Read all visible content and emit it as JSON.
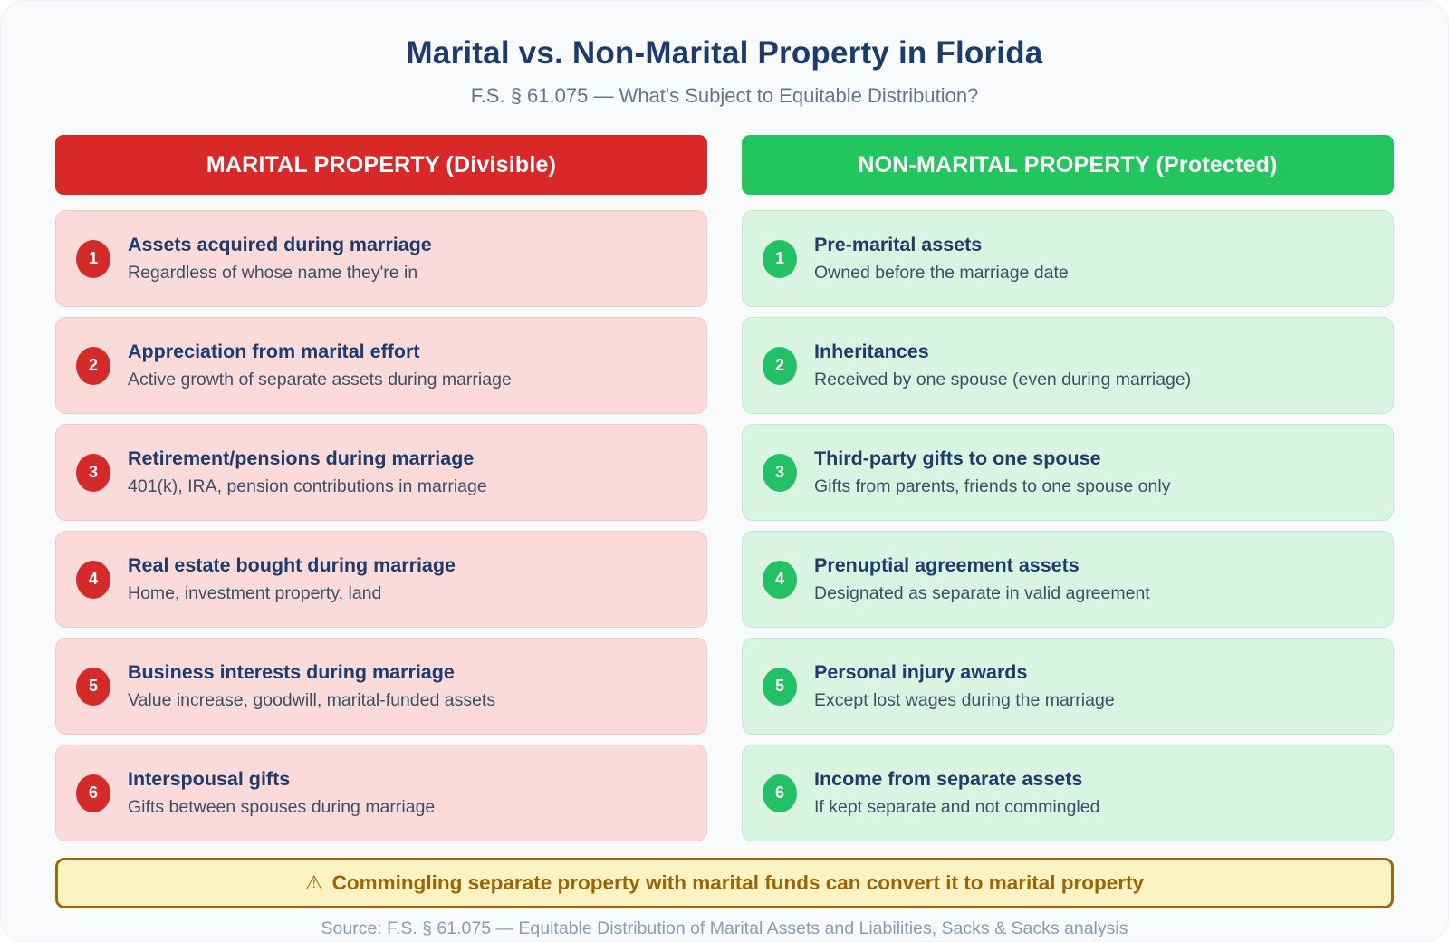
{
  "header": {
    "title": "Marital vs. Non-Marital Property in Florida",
    "subtitle": "F.S. § 61.075 — What's Subject to Equitable Distribution?"
  },
  "columns": [
    {
      "header": "MARITAL PROPERTY (Divisible)",
      "accent_color": "#d92828",
      "card_bg_color": "#fbdbd9",
      "items": [
        {
          "num": "1",
          "title": "Assets acquired during marriage",
          "desc": "Regardless of whose name they're in"
        },
        {
          "num": "2",
          "title": "Appreciation from marital effort",
          "desc": "Active growth of separate assets during marriage"
        },
        {
          "num": "3",
          "title": "Retirement/pensions during marriage",
          "desc": "401(k), IRA, pension contributions in marriage"
        },
        {
          "num": "4",
          "title": "Real estate bought during marriage",
          "desc": "Home, investment property, land"
        },
        {
          "num": "5",
          "title": "Business interests during marriage",
          "desc": "Value increase, goodwill, marital-funded assets"
        },
        {
          "num": "6",
          "title": "Interspousal gifts",
          "desc": "Gifts between spouses during marriage"
        }
      ]
    },
    {
      "header": "NON-MARITAL PROPERTY (Protected)",
      "accent_color": "#22c55e",
      "card_bg_color": "#d9f4e1",
      "items": [
        {
          "num": "1",
          "title": "Pre-marital assets",
          "desc": "Owned before the marriage date"
        },
        {
          "num": "2",
          "title": "Inheritances",
          "desc": "Received by one spouse (even during marriage)"
        },
        {
          "num": "3",
          "title": "Third-party gifts to one spouse",
          "desc": "Gifts from parents, friends to one spouse only"
        },
        {
          "num": "4",
          "title": "Prenuptial agreement assets",
          "desc": "Designated as separate in valid agreement"
        },
        {
          "num": "5",
          "title": "Personal injury awards",
          "desc": "Except lost wages during the marriage"
        },
        {
          "num": "6",
          "title": "Income from separate assets",
          "desc": "If kept separate and not commingled"
        }
      ]
    }
  ],
  "warning": {
    "icon": "⚠",
    "text": "Commingling separate property with marital funds can convert it to marital property",
    "bg_color": "#fbf3c2",
    "border_color": "#9a6a0a",
    "text_color": "#9a6408"
  },
  "footer": {
    "source": "Source: F.S. § 61.075 — Equitable Distribution of Marital Assets and Liabilities, Sacks & Sacks analysis"
  }
}
